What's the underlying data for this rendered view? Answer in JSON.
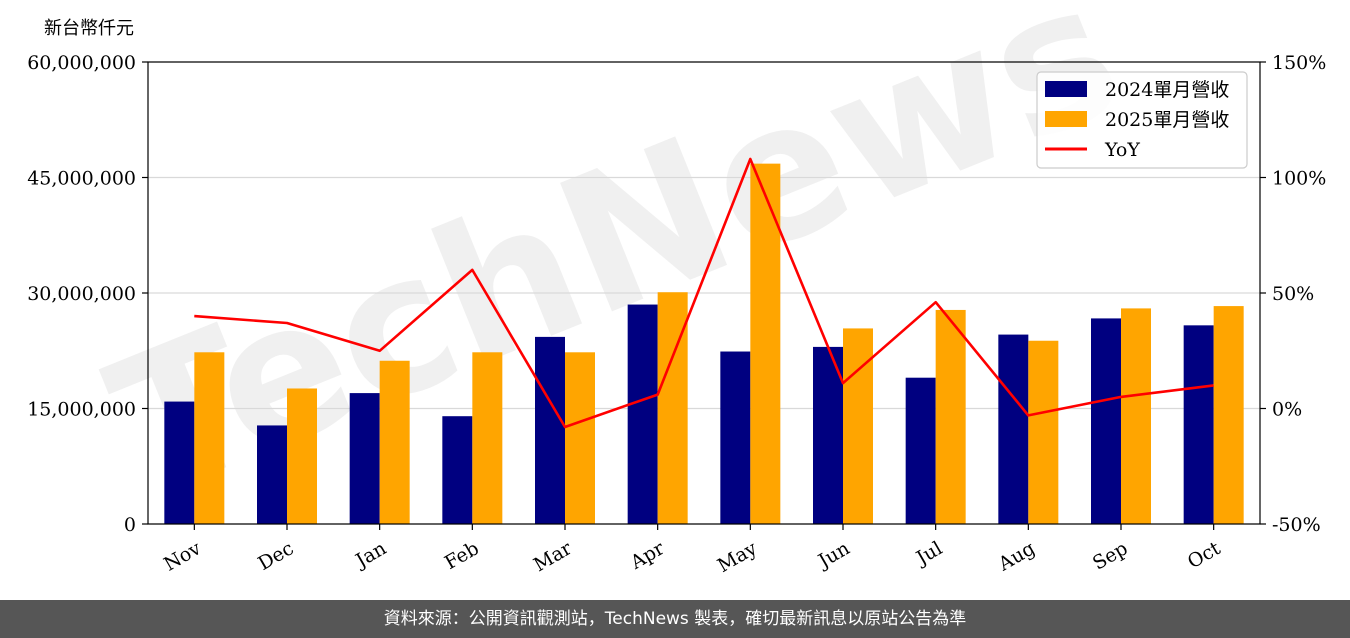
{
  "chart_data": {
    "type": "bar",
    "categories": [
      "Nov",
      "Dec",
      "Jan",
      "Feb",
      "Mar",
      "Apr",
      "May",
      "Jun",
      "Jul",
      "Aug",
      "Sep",
      "Oct"
    ],
    "series": [
      {
        "name": "2024單月營收",
        "type": "bar",
        "axis": "left",
        "color": "#000080",
        "values": [
          15900000,
          12800000,
          17000000,
          14000000,
          24300000,
          28500000,
          22400000,
          23000000,
          19000000,
          24600000,
          26700000,
          25800000
        ]
      },
      {
        "name": "2025單月營收",
        "type": "bar",
        "axis": "left",
        "color": "#FFA500",
        "values": [
          22300000,
          17600000,
          21200000,
          22300000,
          22300000,
          30100000,
          46800000,
          25400000,
          27800000,
          23800000,
          28000000,
          28300000
        ]
      },
      {
        "name": "YoY",
        "type": "line",
        "axis": "right",
        "color": "#FF0000",
        "values": [
          40,
          37,
          25,
          60,
          -8,
          6,
          108,
          11,
          46,
          -3,
          5,
          10
        ]
      }
    ],
    "ylabel": "新台幣仟元",
    "ylim": [
      0,
      60000000
    ],
    "yticks": [
      "0",
      "15,000,000",
      "30,000,000",
      "45,000,000",
      "60,000,000"
    ],
    "y2lim": [
      -50,
      150
    ],
    "y2ticks": [
      "-50%",
      "0%",
      "50%",
      "100%",
      "150%"
    ],
    "grid": true,
    "legend_position": "top-right"
  },
  "watermark": "TechNews",
  "footer": {
    "text": "資料來源：公開資訊觀測站，TechNews 製表，確切最新訊息以原站公告為準"
  }
}
